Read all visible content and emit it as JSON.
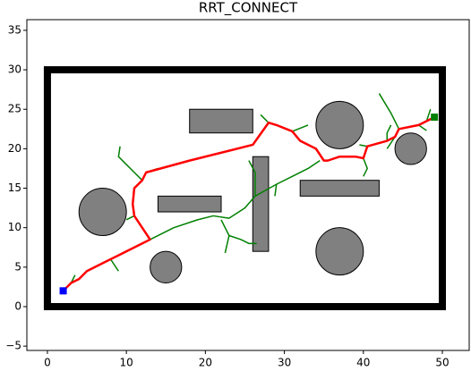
{
  "chart_data": {
    "type": "path_plan",
    "title": "RRT_CONNECT",
    "xlim": [
      -2.6,
      53.4
    ],
    "ylim": [
      -5.55,
      36.35
    ],
    "xticks": [
      0,
      10,
      20,
      30,
      40,
      50
    ],
    "yticks": [
      {
        "value": -5,
        "label": "−5"
      },
      0,
      5,
      10,
      15,
      20,
      25,
      30,
      35
    ],
    "boundary": {
      "x": [
        0,
        50
      ],
      "y": [
        0,
        30
      ],
      "color": "#000000"
    },
    "obstacle_color": "#808080",
    "rect_obstacles": [
      [
        18,
        22,
        8,
        3
      ],
      [
        14,
        12,
        8,
        2
      ],
      [
        26,
        7,
        2,
        12
      ],
      [
        32,
        14,
        10,
        2
      ]
    ],
    "circle_obstacles": [
      [
        7,
        12,
        3
      ],
      [
        15,
        5,
        2
      ],
      [
        37,
        7,
        3
      ],
      [
        37,
        23,
        3
      ],
      [
        46,
        20,
        2
      ]
    ],
    "start": [
      2,
      2
    ],
    "start_color": "#0000ff",
    "goal": [
      49,
      24
    ],
    "goal_color": "#008000",
    "tree": {
      "color": "#008000",
      "branches": [
        {
          "x": [
            13,
            16,
            19,
            21,
            23,
            25,
            26.3,
            26.3,
            25.5
          ],
          "y": [
            8.5,
            10,
            11,
            11.5,
            11.2,
            12.5,
            14,
            17,
            18.5
          ]
        },
        {
          "x": [
            22,
            23,
            22.5
          ],
          "y": [
            11,
            9,
            6.8
          ]
        },
        {
          "x": [
            23,
            24.5,
            25.5,
            26.5
          ],
          "y": [
            9,
            8.5,
            8,
            8
          ]
        },
        {
          "x": [
            26.3,
            29,
            31,
            33,
            34.5
          ],
          "y": [
            14,
            15.5,
            16.5,
            17.5,
            18.5
          ]
        },
        {
          "x": [
            29,
            28.8
          ],
          "y": [
            15.5,
            14
          ]
        },
        {
          "x": [
            12,
            11,
            10,
            9,
            9.2
          ],
          "y": [
            16,
            17,
            18,
            19,
            20.3
          ]
        },
        {
          "x": [
            12.5,
            14
          ],
          "y": [
            17,
            17.5
          ]
        },
        {
          "x": [
            11,
            10
          ],
          "y": [
            11.5,
            11
          ]
        },
        {
          "x": [
            7,
            8,
            9
          ],
          "y": [
            5.5,
            6,
            4.5
          ]
        },
        {
          "x": [
            3,
            3.5
          ],
          "y": [
            3,
            4
          ]
        },
        {
          "x": [
            28,
            27
          ],
          "y": [
            23.3,
            24.3
          ]
        },
        {
          "x": [
            31,
            33
          ],
          "y": [
            22.2,
            23
          ]
        },
        {
          "x": [
            40.5,
            39.5
          ],
          "y": [
            20.3,
            20.5
          ]
        },
        {
          "x": [
            40,
            40.5,
            40
          ],
          "y": [
            18.8,
            17.5,
            16.5
          ]
        },
        {
          "x": [
            43,
            43,
            43.5
          ],
          "y": [
            21,
            22,
            23
          ]
        },
        {
          "x": [
            44.5,
            43.5,
            42
          ],
          "y": [
            22.5,
            24.5,
            27
          ]
        },
        {
          "x": [
            47,
            48
          ],
          "y": [
            23,
            22.3
          ]
        },
        {
          "x": [
            48,
            48.5
          ],
          "y": [
            23.5,
            25
          ]
        },
        {
          "x": [
            44,
            43
          ],
          "y": [
            21.5,
            20
          ]
        }
      ]
    },
    "path": {
      "color": "#ff0000",
      "x": [
        2,
        3,
        4,
        5,
        7,
        9,
        11,
        13,
        12,
        11,
        10.8,
        11,
        12,
        12.5,
        18,
        26,
        28,
        29,
        31,
        32,
        34,
        35,
        35.5,
        37,
        39,
        40,
        40.5,
        43,
        44,
        44.5,
        47,
        48,
        49
      ],
      "y": [
        2,
        3,
        3.5,
        4.5,
        5.5,
        6.5,
        7.5,
        8.5,
        10,
        11.5,
        13,
        15,
        16,
        17,
        18.5,
        20.5,
        23.3,
        23,
        22.2,
        21,
        20,
        18.5,
        18.5,
        19,
        19,
        18.8,
        20.3,
        21,
        21.5,
        22.5,
        23,
        23.5,
        24
      ]
    }
  }
}
